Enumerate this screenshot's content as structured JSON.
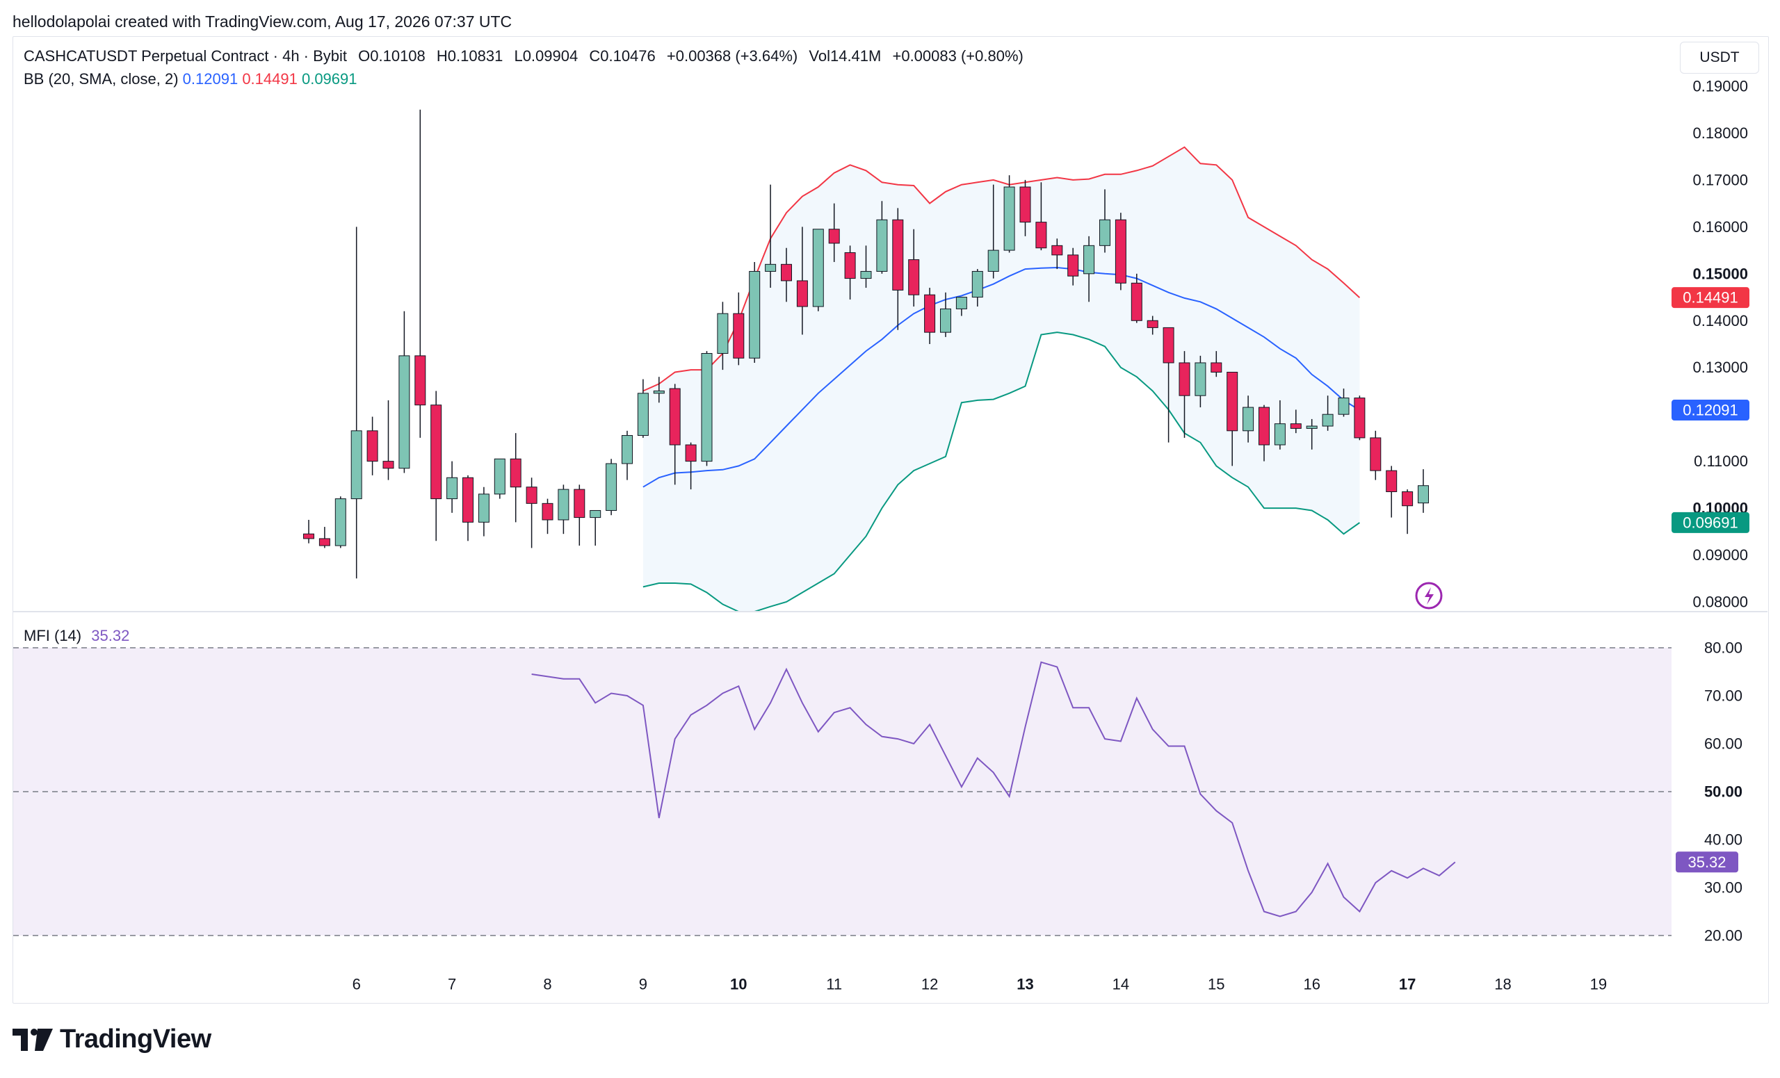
{
  "header": {
    "credit": "hellodolapolai created with TradingView.com, Aug 17, 2026 07:37 UTC"
  },
  "legend": {
    "symbol": "CASHCATUSDT Perpetual Contract · 4h · Bybit",
    "open": "O0.10108",
    "high": "H0.10831",
    "low": "L0.09904",
    "close": "C0.10476",
    "change": "+0.00368 (+3.64%)",
    "vol": "Vol14.41M",
    "vol_change": "+0.00083 (+0.80%)",
    "bb_label": "BB (20, SMA, close, 2)",
    "bb_basis": "0.12091",
    "bb_upper": "0.14491",
    "bb_lower": "0.09691",
    "mfi_label": "MFI (14)",
    "mfi_value": "35.32"
  },
  "currency": "USDT",
  "logo_text": "TradingView",
  "colors": {
    "up": "#7ec4b4",
    "down": "#e8245c",
    "basis": "#2962ff",
    "upper": "#f23645",
    "lower": "#089981",
    "mfi": "#7e57c2",
    "band_fill": "#f2f8fd",
    "mfi_fill": "#f3eef9"
  },
  "chart_data": [
    {
      "type": "candlestick",
      "title": "CASHCATUSDT Perpetual Contract · 4h · Bybit",
      "ylim": [
        0.08,
        0.19
      ],
      "y_ticks": [
        "0.19000",
        "0.18000",
        "0.17000",
        "0.16000",
        "0.15000",
        "0.14000",
        "0.13000",
        "0.12000",
        "0.11000",
        "0.10000",
        "0.09000",
        "0.08000"
      ],
      "x_ticks": [
        {
          "label": "6",
          "i": 3
        },
        {
          "label": "7",
          "i": 9
        },
        {
          "label": "8",
          "i": 15
        },
        {
          "label": "9",
          "i": 21
        },
        {
          "label": "10",
          "i": 27
        },
        {
          "label": "11",
          "i": 33
        },
        {
          "label": "12",
          "i": 39
        },
        {
          "label": "13",
          "i": 45
        },
        {
          "label": "14",
          "i": 51
        },
        {
          "label": "15",
          "i": 57
        },
        {
          "label": "16",
          "i": 63
        },
        {
          "label": "17",
          "i": 69
        },
        {
          "label": "18",
          "i": 75
        },
        {
          "label": "19",
          "i": 81
        }
      ],
      "bold_ticks": [
        "0.15000",
        "0.10000",
        "10",
        "13",
        "17"
      ],
      "price_labels": [
        {
          "value": 0.14491,
          "text": "0.14491",
          "color": "#f23645"
        },
        {
          "value": 0.12091,
          "text": "0.12091",
          "color": "#2962ff"
        },
        {
          "value": 0.09691,
          "text": "0.09691",
          "color": "#089981"
        }
      ],
      "ohlc": [
        [
          0.0945,
          0.0975,
          0.0925,
          0.0935
        ],
        [
          0.0935,
          0.096,
          0.0915,
          0.092
        ],
        [
          0.092,
          0.1025,
          0.0915,
          0.102
        ],
        [
          0.102,
          0.16,
          0.085,
          0.1165
        ],
        [
          0.1165,
          0.1195,
          0.107,
          0.11
        ],
        [
          0.11,
          0.123,
          0.106,
          0.1085
        ],
        [
          0.1085,
          0.142,
          0.1075,
          0.1325
        ],
        [
          0.1325,
          0.185,
          0.115,
          0.122
        ],
        [
          0.122,
          0.125,
          0.093,
          0.102
        ],
        [
          0.102,
          0.11,
          0.099,
          0.1065
        ],
        [
          0.1065,
          0.107,
          0.093,
          0.097
        ],
        [
          0.097,
          0.1045,
          0.094,
          0.103
        ],
        [
          0.103,
          0.11,
          0.102,
          0.1105
        ],
        [
          0.1105,
          0.116,
          0.097,
          0.1045
        ],
        [
          0.1045,
          0.1065,
          0.0915,
          0.101
        ],
        [
          0.101,
          0.102,
          0.0945,
          0.0975
        ],
        [
          0.0975,
          0.105,
          0.0945,
          0.104
        ],
        [
          0.104,
          0.105,
          0.092,
          0.098
        ],
        [
          0.098,
          0.0995,
          0.092,
          0.0995
        ],
        [
          0.0995,
          0.1105,
          0.0985,
          0.1095
        ],
        [
          0.1095,
          0.1165,
          0.106,
          0.1155
        ],
        [
          0.1155,
          0.1275,
          0.115,
          0.1245
        ],
        [
          0.1245,
          0.128,
          0.1225,
          0.125
        ],
        [
          0.1255,
          0.1265,
          0.105,
          0.1135
        ],
        [
          0.1135,
          0.114,
          0.104,
          0.11
        ],
        [
          0.11,
          0.1335,
          0.109,
          0.133
        ],
        [
          0.133,
          0.144,
          0.1295,
          0.1415
        ],
        [
          0.1415,
          0.146,
          0.1305,
          0.132
        ],
        [
          0.132,
          0.1525,
          0.131,
          0.1505
        ],
        [
          0.1505,
          0.169,
          0.147,
          0.152
        ],
        [
          0.152,
          0.1555,
          0.144,
          0.1485
        ],
        [
          0.1485,
          0.16,
          0.137,
          0.143
        ],
        [
          0.143,
          0.159,
          0.142,
          0.1595
        ],
        [
          0.1595,
          0.165,
          0.1525,
          0.1565
        ],
        [
          0.1545,
          0.156,
          0.1445,
          0.149
        ],
        [
          0.149,
          0.156,
          0.147,
          0.1505
        ],
        [
          0.1505,
          0.1655,
          0.15,
          0.1615
        ],
        [
          0.1615,
          0.164,
          0.138,
          0.1465
        ],
        [
          0.153,
          0.1595,
          0.143,
          0.1455
        ],
        [
          0.1455,
          0.147,
          0.135,
          0.1375
        ],
        [
          0.1375,
          0.146,
          0.1365,
          0.1425
        ],
        [
          0.1425,
          0.1445,
          0.141,
          0.145
        ],
        [
          0.145,
          0.151,
          0.143,
          0.1505
        ],
        [
          0.1505,
          0.169,
          0.149,
          0.155
        ],
        [
          0.155,
          0.171,
          0.1545,
          0.1685
        ],
        [
          0.1685,
          0.17,
          0.158,
          0.161
        ],
        [
          0.161,
          0.1695,
          0.155,
          0.1555
        ],
        [
          0.156,
          0.1575,
          0.151,
          0.154
        ],
        [
          0.154,
          0.1555,
          0.1475,
          0.1495
        ],
        [
          0.15,
          0.158,
          0.144,
          0.156
        ],
        [
          0.156,
          0.168,
          0.1545,
          0.1615
        ],
        [
          0.1615,
          0.163,
          0.1465,
          0.148
        ],
        [
          0.148,
          0.15,
          0.1395,
          0.14
        ],
        [
          0.14,
          0.141,
          0.137,
          0.1385
        ],
        [
          0.1385,
          0.1385,
          0.114,
          0.131
        ],
        [
          0.131,
          0.1335,
          0.115,
          0.124
        ],
        [
          0.124,
          0.1325,
          0.1215,
          0.131
        ],
        [
          0.131,
          0.1335,
          0.128,
          0.129
        ],
        [
          0.129,
          0.129,
          0.109,
          0.1165
        ],
        [
          0.1165,
          0.124,
          0.114,
          0.1215
        ],
        [
          0.1215,
          0.122,
          0.11,
          0.1135
        ],
        [
          0.1135,
          0.123,
          0.1125,
          0.118
        ],
        [
          0.118,
          0.121,
          0.116,
          0.117
        ],
        [
          0.117,
          0.119,
          0.1125,
          0.1175
        ],
        [
          0.1175,
          0.124,
          0.1165,
          0.12
        ],
        [
          0.12,
          0.1255,
          0.1195,
          0.1235
        ],
        [
          0.1235,
          0.124,
          0.1145,
          0.115
        ],
        [
          0.115,
          0.1165,
          0.106,
          0.108
        ],
        [
          0.108,
          0.109,
          0.098,
          0.1035
        ],
        [
          0.1035,
          0.104,
          0.0945,
          0.1005
        ],
        [
          0.1011,
          0.1083,
          0.099,
          0.1048
        ]
      ],
      "bb_start": 21,
      "bb_basis": [
        0.1045,
        0.1065,
        0.1075,
        0.1077,
        0.108,
        0.1082,
        0.109,
        0.1105,
        0.114,
        0.1175,
        0.121,
        0.1245,
        0.1275,
        0.1305,
        0.1335,
        0.136,
        0.139,
        0.1415,
        0.1432,
        0.1445,
        0.1453,
        0.1465,
        0.1478,
        0.1495,
        0.151,
        0.1512,
        0.1513,
        0.151,
        0.1503,
        0.15,
        0.1498,
        0.149,
        0.1475,
        0.146,
        0.1448,
        0.144,
        0.1425,
        0.1405,
        0.1385,
        0.1365,
        0.134,
        0.132,
        0.1285,
        0.126,
        0.123,
        0.1209
      ],
      "bb_upper": [
        0.125,
        0.1265,
        0.129,
        0.1295,
        0.1295,
        0.133,
        0.14,
        0.149,
        0.1575,
        0.163,
        0.1665,
        0.1685,
        0.1715,
        0.1732,
        0.172,
        0.1695,
        0.169,
        0.1688,
        0.165,
        0.1675,
        0.169,
        0.1695,
        0.17,
        0.169,
        0.1695,
        0.17,
        0.1705,
        0.17,
        0.1702,
        0.1712,
        0.1712,
        0.172,
        0.173,
        0.175,
        0.177,
        0.1735,
        0.1732,
        0.17,
        0.162,
        0.16,
        0.158,
        0.156,
        0.153,
        0.151,
        0.148,
        0.1449
      ],
      "bb_lower": [
        0.0832,
        0.084,
        0.084,
        0.0838,
        0.082,
        0.0795,
        0.077,
        0.077,
        0.079,
        0.08,
        0.082,
        0.084,
        0.086,
        0.09,
        0.094,
        0.1,
        0.105,
        0.108,
        0.1095,
        0.111,
        0.1225,
        0.123,
        0.1232,
        0.1245,
        0.126,
        0.137,
        0.1375,
        0.137,
        0.136,
        0.1345,
        0.13,
        0.128,
        0.125,
        0.121,
        0.116,
        0.114,
        0.109,
        0.1065,
        0.1045,
        0.1,
        0.1,
        0.1,
        0.0995,
        0.0975,
        0.0945,
        0.0969
      ]
    },
    {
      "type": "line",
      "title": "MFI (14)",
      "ylim": [
        20,
        80
      ],
      "y_ticks": [
        "80.00",
        "70.00",
        "60.00",
        "50.00",
        "40.00",
        "30.00",
        "20.00"
      ],
      "bold_ticks": [
        "50.00"
      ],
      "dashed_levels": [
        80,
        50,
        20
      ],
      "current_label": {
        "value": 35.32,
        "text": "35.32"
      },
      "start": 14,
      "values": [
        74.5,
        74.0,
        73.5,
        73.5,
        68.5,
        70.5,
        70.0,
        68.0,
        44.5,
        61.0,
        66.0,
        68.0,
        70.5,
        72.0,
        63.0,
        68.5,
        75.5,
        68.5,
        62.5,
        66.5,
        67.5,
        64.0,
        61.5,
        61.0,
        60.0,
        64.0,
        57.5,
        51.0,
        57.0,
        54.0,
        49.0,
        63.5,
        77.0,
        76.0,
        67.5,
        67.5,
        61.0,
        60.5,
        69.5,
        63.0,
        59.5,
        59.5,
        49.5,
        46.0,
        43.5,
        33.5,
        25.0,
        24.0,
        25.0,
        29.0,
        35.0,
        28.0,
        25.0,
        31.0,
        33.5,
        32.0,
        34.0,
        32.5,
        35.3
      ]
    }
  ]
}
